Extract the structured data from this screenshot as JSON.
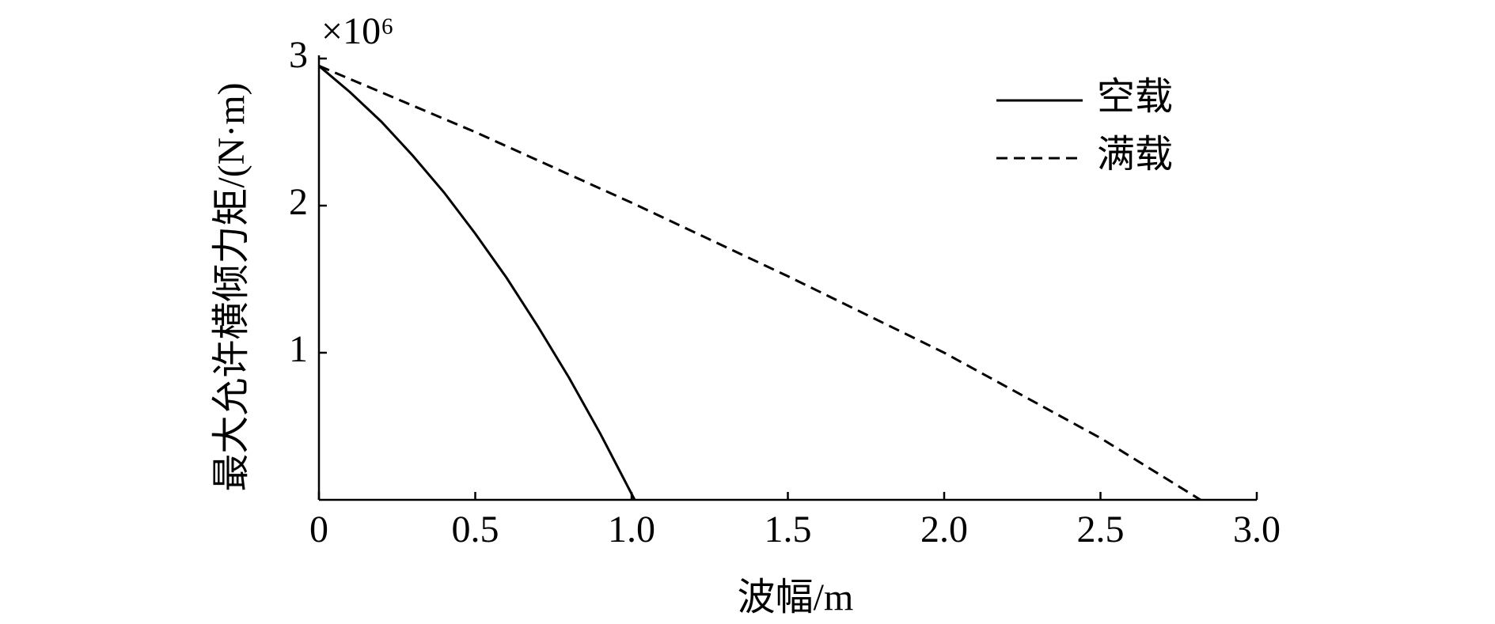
{
  "chart_data": {
    "type": "line",
    "x_label": "波幅/m",
    "y_label": "最大允许横倾力矩/(N·m)",
    "y_multiplier": "×10⁶",
    "xlim": [
      0,
      3
    ],
    "ylim": [
      0,
      3
    ],
    "xticks": [
      0,
      0.5,
      {
        "value": 1,
        "label": "1.0"
      },
      1.5,
      {
        "value": 2,
        "label": "2.0"
      },
      2.5,
      {
        "value": 3,
        "label": "3.0"
      }
    ],
    "yticks": [
      1,
      2,
      3
    ],
    "legend": "upper right",
    "series": [
      {
        "name": "空载",
        "color": "#000000",
        "dash": "solid",
        "x": [
          0,
          0.1,
          0.2,
          0.3,
          0.4,
          0.5,
          0.6,
          0.7,
          0.8,
          0.9,
          1.01
        ],
        "values": [
          2.95,
          2.77,
          2.57,
          2.34,
          2.09,
          1.81,
          1.51,
          1.18,
          0.83,
          0.45,
          0
        ]
      },
      {
        "name": "满载",
        "color": "#000000",
        "dash": "dashed",
        "x": [
          0,
          0.5,
          1.0,
          1.5,
          2.0,
          2.5,
          2.82
        ],
        "values": [
          2.95,
          2.5,
          2.02,
          1.52,
          1.0,
          0.42,
          0
        ]
      }
    ]
  }
}
